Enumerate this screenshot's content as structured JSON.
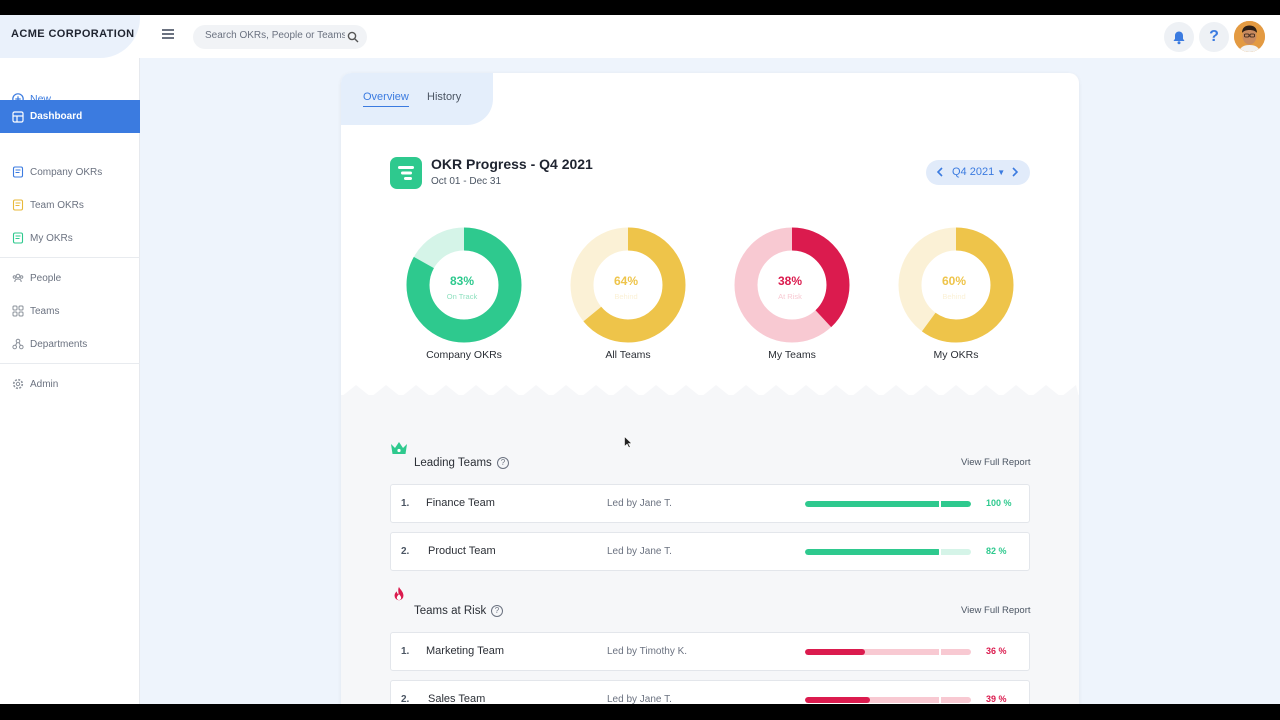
{
  "brand": "ACME CORPORATION",
  "search": {
    "placeholder": "Search OKRs, People or Teams"
  },
  "header": {
    "help_label": "?"
  },
  "sidebar": {
    "new_label": "New",
    "items": [
      {
        "label": "Dashboard",
        "icon": "dashboard-icon",
        "active": true
      },
      {
        "label": "Company OKRs",
        "icon": "document-icon"
      },
      {
        "label": "Team OKRs",
        "icon": "document-icon"
      },
      {
        "label": "My OKRs",
        "icon": "document-icon"
      },
      {
        "label": "People",
        "icon": "people-icon"
      },
      {
        "label": "Teams",
        "icon": "grid-icon"
      },
      {
        "label": "Departments",
        "icon": "departments-icon"
      },
      {
        "label": "Admin",
        "icon": "gear-icon"
      }
    ]
  },
  "tabs": {
    "overview": "Overview",
    "history": "History"
  },
  "okr": {
    "title": "OKR Progress - Q4 2021",
    "range": "Oct 01 - Dec 31",
    "quarter": "Q4 2021"
  },
  "donuts": [
    {
      "caption": "Company OKRs",
      "percent": "83%",
      "value": 83,
      "status": "On Track",
      "color": "#2ec98e",
      "track": "#d5f4e8"
    },
    {
      "caption": "All Teams",
      "percent": "64%",
      "value": 64,
      "status": "Behind",
      "color": "#eec44a",
      "track": "#fbf1d6"
    },
    {
      "caption": "My Teams",
      "percent": "38%",
      "value": 38,
      "status": "At Risk",
      "color": "#db1b4e",
      "track": "#f8c9d2"
    },
    {
      "caption": "My OKRs",
      "percent": "60%",
      "value": 60,
      "status": "Behind",
      "color": "#eec44a",
      "track": "#fbf1d6"
    }
  ],
  "leading": {
    "title": "Leading Teams",
    "view_report": "View Full Report",
    "rows": [
      {
        "rank": "1.",
        "name": "Finance Team",
        "led": "Led by Jane T.",
        "percent": "100 %",
        "value": 100
      },
      {
        "rank": "2.",
        "name": "Product Team",
        "led": "Led by Jane T.",
        "percent": "82 %",
        "value": 82
      }
    ],
    "color": "#2ec98e",
    "track": "#d5f4e8"
  },
  "risk": {
    "title": "Teams at Risk",
    "view_report": "View Full Report",
    "rows": [
      {
        "rank": "1.",
        "name": "Marketing Team",
        "led": "Led by Timothy K.",
        "percent": "36 %",
        "value": 36
      },
      {
        "rank": "2.",
        "name": "Sales Team",
        "led": "Led by Jane T.",
        "percent": "39 %",
        "value": 39
      }
    ],
    "color": "#db1b4e",
    "track": "#f8c9d2"
  }
}
